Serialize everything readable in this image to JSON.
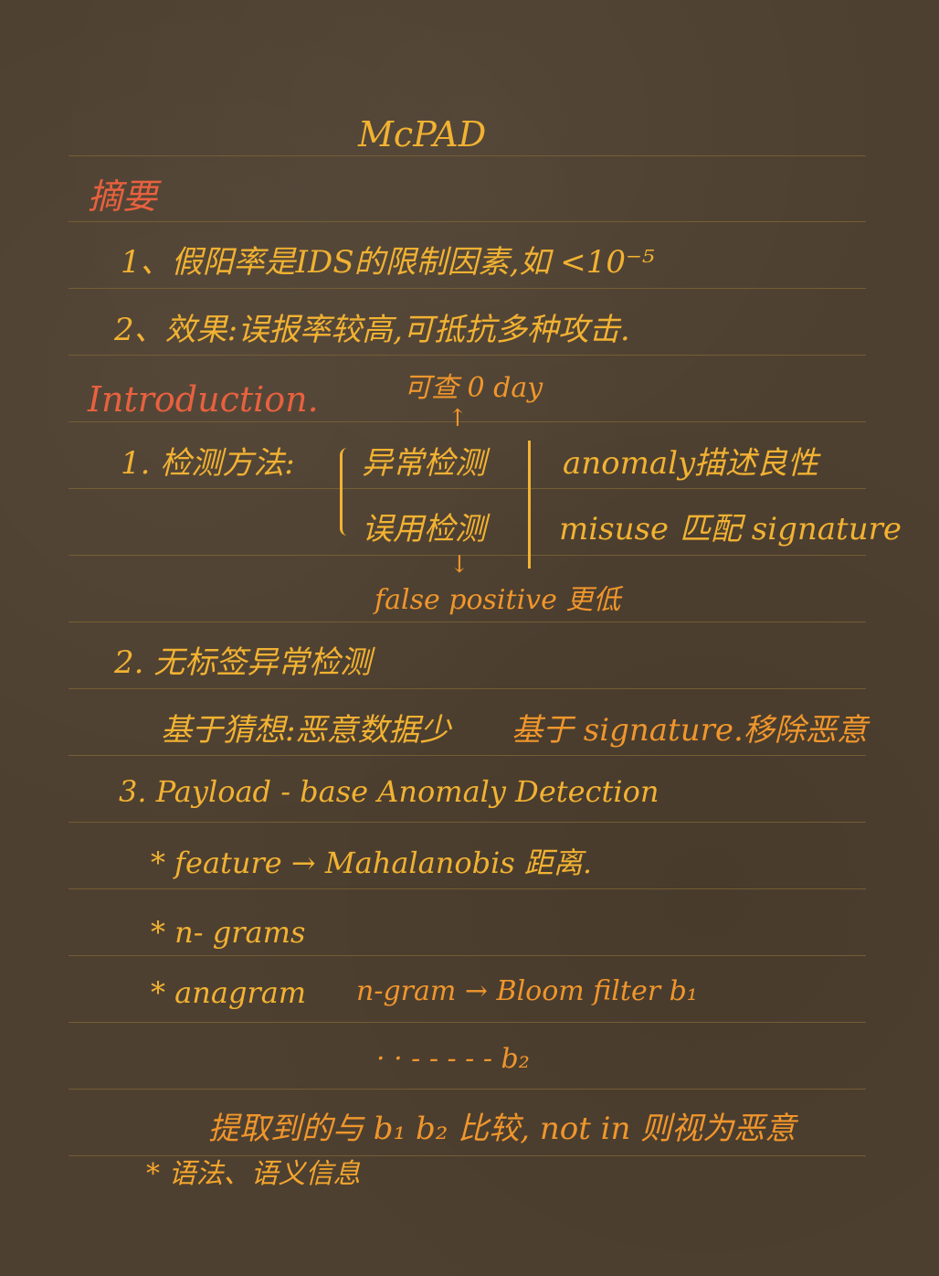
{
  "title": "McPAD",
  "abstract": {
    "heading": "摘要",
    "item1": "1、假阳率是IDS的限制因素,如 <10⁻⁵",
    "item2": "2、效果:误报率较高,可抵抗多种攻击."
  },
  "introduction": {
    "heading": "Introduction.",
    "annotation_top": "可查 0 day",
    "detection_label": "1. 检测方法:",
    "anomaly_cn": "异常检测",
    "anomaly_en": "anomaly",
    "anomaly_desc": "描述良性",
    "misuse_cn": "误用检测",
    "misuse_en": "misuse",
    "misuse_desc": "匹配 signature",
    "annotation_bottom": "false positive 更低",
    "unlabeled_heading": "2. 无标签异常检测",
    "unlabeled_detail_1": "基于猜想:恶意数据少",
    "unlabeled_detail_2": "基于 signature.移除恶意",
    "payload_heading": "3.  Payload - base  Anomaly  Detection",
    "bullet_feature": "* feature  →  Mahalanobis 距离.",
    "bullet_ngrams": "*  n- grams",
    "bullet_anagram_label": "*   anagram",
    "bullet_anagram_detail": "n-gram → Bloom filter b₁",
    "bullet_anagram_b2": "· · - - - - - b₂",
    "compare_line": "提取到的与 b₁ b₂ 比较, not in 则视为恶意",
    "bullet_syntax": "* 语法、语义信息"
  },
  "colors": {
    "background": "#4e4030",
    "ink_yellow": "#f2b232",
    "ink_orange": "#f0962c",
    "ink_red": "#e8613f",
    "rule_line": "#7a6335"
  }
}
